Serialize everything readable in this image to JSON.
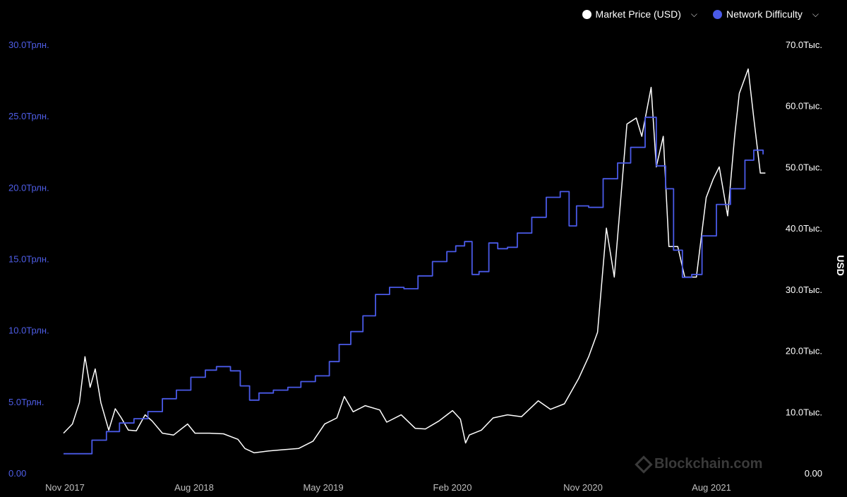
{
  "legend": {
    "price_label": "Market Price (USD)",
    "price_color": "#ffffff",
    "difficulty_label": "Network Difficulty",
    "difficulty_color": "#4a5ae8"
  },
  "watermark": "Blockchain.com",
  "chart_data": {
    "type": "line",
    "ylabel_right": "USD",
    "grid": false,
    "legend_position": "top-right",
    "x_ticks": [
      "Nov 2017",
      "Aug 2018",
      "May 2019",
      "Feb 2020",
      "Nov 2020",
      "Aug 2021"
    ],
    "x_range": [
      "2017-11-01",
      "2021-12-31"
    ],
    "y_left": {
      "range": [
        0,
        30000000000000
      ],
      "ticks": [
        {
          "value": 0,
          "label": "0.00"
        },
        {
          "value": 5000000000000,
          "label": "5.0Трлн."
        },
        {
          "value": 10000000000000,
          "label": "10.0Трлн."
        },
        {
          "value": 15000000000000,
          "label": "15.0Трлн."
        },
        {
          "value": 20000000000000,
          "label": "20.0Трлн."
        },
        {
          "value": 25000000000000,
          "label": "25.0Трлн."
        },
        {
          "value": 30000000000000,
          "label": "30.0Трлн."
        }
      ]
    },
    "y_right": {
      "range": [
        0,
        70000
      ],
      "ticks": [
        {
          "value": 0,
          "label": "0.00"
        },
        {
          "value": 10000,
          "label": "10.0Тыс."
        },
        {
          "value": 20000,
          "label": "20.0Тыс."
        },
        {
          "value": 30000,
          "label": "30.0Тыс."
        },
        {
          "value": 40000,
          "label": "40.0Тыс."
        },
        {
          "value": 50000,
          "label": "50.0Тыс."
        },
        {
          "value": 60000,
          "label": "60.0Тыс."
        },
        {
          "value": 70000,
          "label": "70.0Тыс."
        }
      ]
    },
    "series": [
      {
        "name": "Market Price (USD)",
        "axis": "right",
        "color": "#ffffff",
        "x": [
          "2017-11-01",
          "2017-11-20",
          "2017-12-05",
          "2017-12-17",
          "2017-12-28",
          "2018-01-08",
          "2018-01-20",
          "2018-02-06",
          "2018-02-20",
          "2018-03-05",
          "2018-03-20",
          "2018-04-06",
          "2018-04-25",
          "2018-05-10",
          "2018-06-01",
          "2018-06-25",
          "2018-07-25",
          "2018-08-10",
          "2018-09-10",
          "2018-10-10",
          "2018-11-10",
          "2018-11-25",
          "2018-12-15",
          "2019-01-15",
          "2019-02-15",
          "2019-03-20",
          "2019-04-20",
          "2019-05-15",
          "2019-06-10",
          "2019-06-26",
          "2019-07-15",
          "2019-08-10",
          "2019-09-10",
          "2019-09-25",
          "2019-10-26",
          "2019-11-25",
          "2019-12-17",
          "2020-01-15",
          "2020-02-13",
          "2020-03-01",
          "2020-03-12",
          "2020-03-20",
          "2020-04-15",
          "2020-05-10",
          "2020-06-10",
          "2020-07-10",
          "2020-08-15",
          "2020-09-10",
          "2020-10-10",
          "2020-11-10",
          "2020-12-01",
          "2020-12-20",
          "2021-01-08",
          "2021-01-25",
          "2021-02-21",
          "2021-03-13",
          "2021-03-25",
          "2021-04-14",
          "2021-04-25",
          "2021-05-10",
          "2021-05-22",
          "2021-06-10",
          "2021-06-25",
          "2021-07-20",
          "2021-08-10",
          "2021-08-25",
          "2021-09-07",
          "2021-09-25",
          "2021-10-10",
          "2021-10-20",
          "2021-11-08",
          "2021-11-20",
          "2021-12-04",
          "2021-12-15"
        ],
        "values": [
          6500,
          8000,
          11500,
          19000,
          14000,
          17000,
          11500,
          7000,
          10500,
          9000,
          7000,
          6900,
          9500,
          8500,
          6500,
          6200,
          8000,
          6500,
          6500,
          6400,
          5500,
          4000,
          3300,
          3600,
          3800,
          4000,
          5200,
          8000,
          9000,
          12500,
          10000,
          11000,
          10300,
          8300,
          9500,
          7300,
          7200,
          8500,
          10200,
          8800,
          4900,
          6200,
          7000,
          9000,
          9500,
          9200,
          11800,
          10400,
          11300,
          15500,
          19000,
          23000,
          40000,
          32000,
          57000,
          58000,
          55000,
          63000,
          50000,
          55000,
          37000,
          37000,
          32000,
          32000,
          45000,
          48000,
          50000,
          42000,
          55000,
          62000,
          66000,
          58000,
          49000,
          49000
        ]
      },
      {
        "name": "Network Difficulty",
        "axis": "left",
        "color": "#4a5ae8",
        "x": [
          "2017-11-01",
          "2017-12-01",
          "2018-01-01",
          "2018-02-01",
          "2018-03-01",
          "2018-04-01",
          "2018-05-01",
          "2018-06-01",
          "2018-07-01",
          "2018-08-01",
          "2018-09-01",
          "2018-09-25",
          "2018-10-25",
          "2018-11-15",
          "2018-12-05",
          "2018-12-25",
          "2019-01-25",
          "2019-02-25",
          "2019-03-25",
          "2019-04-25",
          "2019-05-25",
          "2019-06-15",
          "2019-07-10",
          "2019-08-05",
          "2019-09-01",
          "2019-10-01",
          "2019-11-01",
          "2019-12-01",
          "2020-01-01",
          "2020-02-01",
          "2020-02-20",
          "2020-03-10",
          "2020-03-26",
          "2020-04-10",
          "2020-05-01",
          "2020-05-20",
          "2020-06-10",
          "2020-07-01",
          "2020-08-01",
          "2020-09-01",
          "2020-10-01",
          "2020-10-20",
          "2020-11-05",
          "2020-12-01",
          "2021-01-01",
          "2021-02-01",
          "2021-03-01",
          "2021-04-01",
          "2021-04-25",
          "2021-05-15",
          "2021-06-01",
          "2021-06-20",
          "2021-07-10",
          "2021-08-01",
          "2021-09-01",
          "2021-10-01",
          "2021-11-01",
          "2021-11-20",
          "2021-12-10"
        ],
        "values": [
          1350000000000,
          1350000000000,
          2300000000000,
          2900000000000,
          3500000000000,
          3800000000000,
          4300000000000,
          5200000000000,
          5800000000000,
          6700000000000,
          7200000000000,
          7450000000000,
          7150000000000,
          6100000000000,
          5100000000000,
          5600000000000,
          5800000000000,
          6000000000000,
          6400000000000,
          6800000000000,
          7800000000000,
          9000000000000,
          9900000000000,
          11000000000000,
          12500000000000,
          13000000000000,
          12900000000000,
          13800000000000,
          14800000000000,
          15500000000000,
          15900000000000,
          16200000000000,
          13900000000000,
          14100000000000,
          16100000000000,
          15700000000000,
          15800000000000,
          16800000000000,
          17900000000000,
          19300000000000,
          19700000000000,
          17300000000000,
          18700000000000,
          18600000000000,
          20600000000000,
          21700000000000,
          22800000000000,
          24900000000000,
          21500000000000,
          19900000000000,
          15600000000000,
          13700000000000,
          13900000000000,
          16600000000000,
          18800000000000,
          19900000000000,
          21900000000000,
          22600000000000,
          22300000000000
        ]
      }
    ]
  }
}
